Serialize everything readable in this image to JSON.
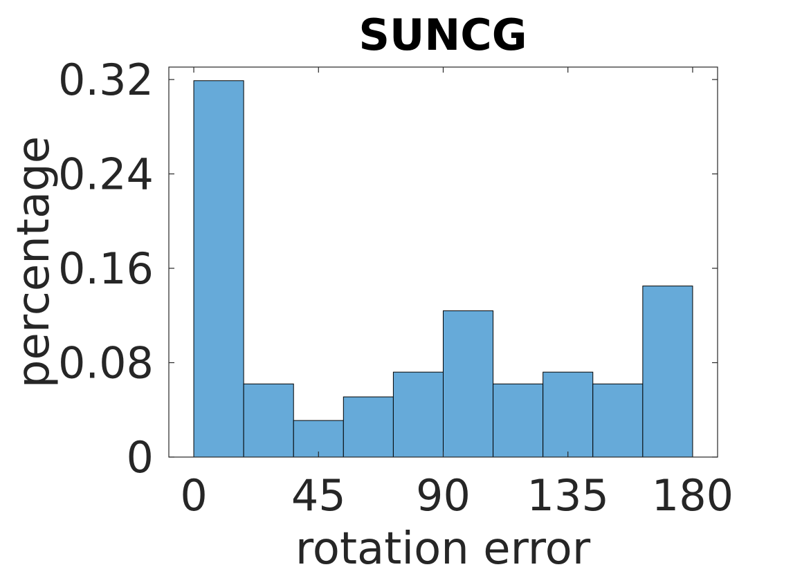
{
  "chart_data": {
    "type": "bar",
    "title": "SUNCG",
    "xlabel": "rotation error",
    "ylabel": "percentage",
    "bin_edges": [
      0,
      18,
      36,
      54,
      72,
      90,
      108,
      126,
      144,
      162,
      180
    ],
    "values": [
      0.319,
      0.062,
      0.031,
      0.051,
      0.072,
      0.124,
      0.062,
      0.072,
      0.062,
      0.145
    ],
    "xlim": [
      -9,
      189
    ],
    "ylim": [
      0,
      0.32
    ],
    "xticks": [
      0,
      45,
      90,
      135,
      180
    ],
    "xtick_labels": [
      "0",
      "45",
      "90",
      "135",
      "180"
    ],
    "yticks": [
      0,
      0.08,
      0.16,
      0.24,
      0.32
    ],
    "ytick_labels": [
      "0",
      "0.08",
      "0.16",
      "0.24",
      "0.32"
    ],
    "grid": false,
    "bar_color": "#66aad9",
    "edge_color": "#000000"
  }
}
